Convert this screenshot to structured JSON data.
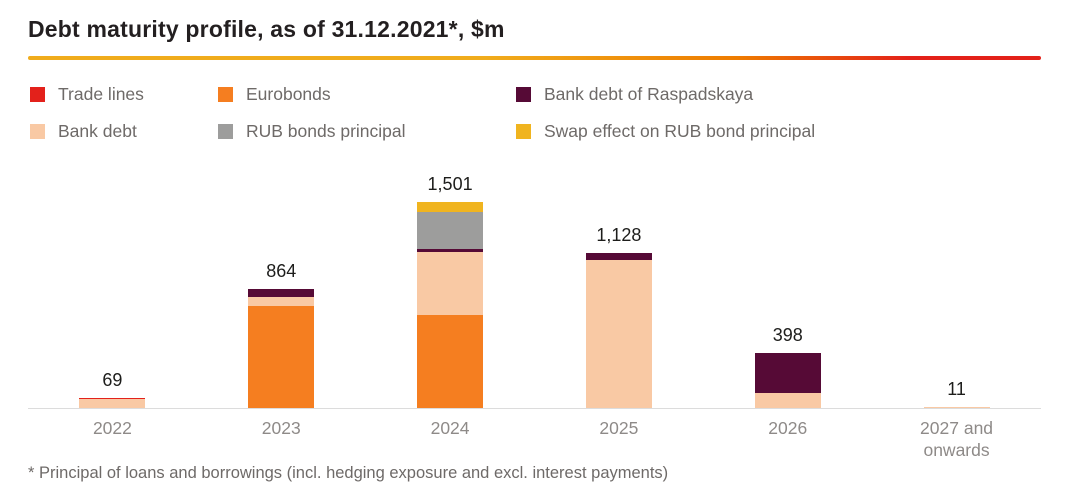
{
  "title": "Debt maturity profile, as of 31.12.2021*, $m",
  "footnote": "*  Principal of loans and borrowings (incl. hedging exposure and excl. interest payments)",
  "accent_gradient": {
    "yellow": "#f0ac1c",
    "orange": "#ee7c00",
    "red": "#e32119"
  },
  "legend": [
    {
      "label": "Trade lines",
      "color": "#e3211b"
    },
    {
      "label": "Eurobonds",
      "color": "#f57e20"
    },
    {
      "label": "Bank debt of Raspadskaya",
      "color": "#560a36"
    },
    {
      "label": "Bank debt",
      "color": "#f9c9a4"
    },
    {
      "label": "RUB bonds principal",
      "color": "#9d9d9c"
    },
    {
      "label": "Swap effect on RUB bond principal",
      "color": "#f0b41f"
    }
  ],
  "chart_data": {
    "type": "bar",
    "stacked": true,
    "title": "Debt maturity profile, as of 31.12.2021*, $m",
    "xlabel": "",
    "ylabel": "$m",
    "ylim": [
      0,
      1600
    ],
    "grid": false,
    "legend_position": "top",
    "categories": [
      "2022",
      "2023",
      "2024",
      "2025",
      "2026",
      "2027 and onwards"
    ],
    "totals": [
      "69",
      "864",
      "1,501",
      "1,128",
      "398",
      "11"
    ],
    "totals_numeric": [
      69,
      864,
      1501,
      1128,
      398,
      11
    ],
    "series": [
      {
        "key": "eurobonds",
        "name": "Eurobonds",
        "color": "#f57e20",
        "values": [
          0,
          740,
          680,
          0,
          0,
          0
        ]
      },
      {
        "key": "bank-debt",
        "name": "Bank debt",
        "color": "#f9c9a4",
        "values": [
          64,
          66,
          456,
          1078,
          108,
          11
        ]
      },
      {
        "key": "trade-lines",
        "name": "Trade lines",
        "color": "#e3211b",
        "values": [
          5,
          0,
          0,
          0,
          0,
          0
        ]
      },
      {
        "key": "raspadskaya-bank-debt",
        "name": "Bank debt of Raspadskaya",
        "color": "#560a36",
        "values": [
          0,
          58,
          22,
          50,
          290,
          0
        ]
      },
      {
        "key": "rub-bonds-principal",
        "name": "RUB bonds principal",
        "color": "#9d9d9c",
        "values": [
          0,
          0,
          270,
          0,
          0,
          0
        ]
      },
      {
        "key": "swap-effect",
        "name": "Swap effect on RUB bond principal",
        "color": "#f0b41f",
        "values": [
          0,
          0,
          73,
          0,
          0,
          0
        ]
      }
    ]
  }
}
